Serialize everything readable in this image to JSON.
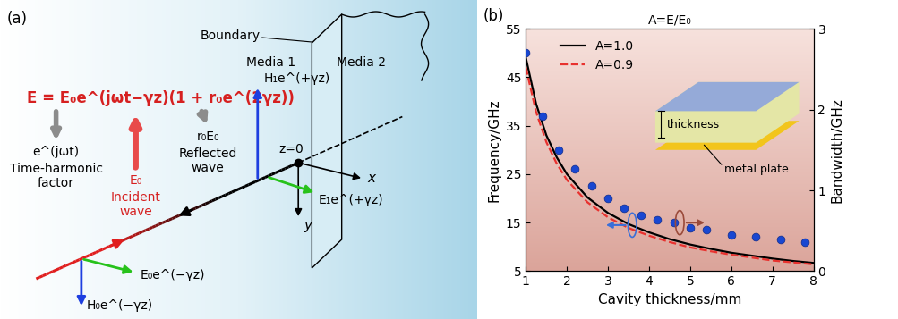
{
  "panel_a": {
    "label": "(a)",
    "formula": "E = E₀e^(jωt−γz)(1 + r₀e^(2γz))",
    "time_factor": "e^(jωt)",
    "time_factor_caption": "Time-harmonic\nfactor",
    "incident_symbol": "E₀",
    "incident_caption": "Incident\nwave",
    "reflected_symbol": "r₀E₀",
    "reflected_caption": "Reflected\nwave",
    "boundary": "Boundary",
    "media_1": "Media 1",
    "media_2": "Media 2",
    "h1": "H₁e^(+γz)",
    "e1": "E₁e^(+γz)",
    "e0": "E₀e^(−γz)",
    "h0": "H₀e^(−γz)",
    "origin": "z=0",
    "x_axis": "x",
    "y_axis": "y"
  },
  "chart_data": {
    "type": "line",
    "panel_label": "(b)",
    "title": "A=E/E₀",
    "x_label": "Cavity thickness/mm",
    "y_label": "Frequency/GHz",
    "y2_label": "Bandwidth/GHz",
    "xlim": [
      1,
      8
    ],
    "xticks": [
      1,
      2,
      3,
      4,
      5,
      6,
      7,
      8
    ],
    "ylim": [
      5,
      55
    ],
    "yticks": [
      5,
      15,
      25,
      35,
      45,
      55
    ],
    "y2lim": [
      0,
      3
    ],
    "y2ticks": [
      0,
      1,
      2,
      3
    ],
    "legend": "upper left",
    "inset_labels": [
      "thickness",
      "metal plate"
    ],
    "series": [
      {
        "name": "A=1.0",
        "color": "#000000",
        "line_style": "solid",
        "type": "line",
        "x": [
          1,
          1.25,
          1.5,
          1.75,
          2,
          2.5,
          3,
          3.5,
          4,
          4.5,
          5,
          5.5,
          6,
          6.5,
          7,
          7.5,
          8
        ],
        "values": [
          49,
          39.5,
          33,
          28.5,
          25,
          20.2,
          17,
          14.7,
          13,
          11.6,
          10.5,
          9.6,
          8.8,
          8.2,
          7.6,
          7.1,
          6.7
        ]
      },
      {
        "name": "A=0.9",
        "color": "#e8322f",
        "line_style": "dashed",
        "type": "line",
        "x": [
          1,
          1.25,
          1.5,
          1.75,
          2,
          2.5,
          3,
          3.5,
          4,
          4.5,
          5,
          5.5,
          6,
          6.5,
          7,
          7.5,
          8
        ],
        "values": [
          47,
          37.8,
          31.6,
          27.2,
          23.8,
          19.2,
          16.1,
          13.9,
          12.3,
          11,
          9.9,
          9.1,
          8.4,
          7.8,
          7.2,
          6.8,
          6.4
        ]
      },
      {
        "color": "#1947d1",
        "type": "scatter",
        "marker": "o",
        "axis": "y2",
        "x": [
          1.0,
          1.4,
          1.8,
          2.2,
          2.6,
          3.0,
          3.4,
          3.8,
          4.2,
          4.6,
          5.0,
          5.4,
          6.0,
          6.6,
          7.2,
          7.8
        ],
        "values": [
          2.7,
          1.92,
          1.5,
          1.26,
          1.05,
          0.9,
          0.78,
          0.69,
          0.63,
          0.6,
          0.54,
          0.51,
          0.45,
          0.42,
          0.39,
          0.36
        ]
      }
    ]
  }
}
